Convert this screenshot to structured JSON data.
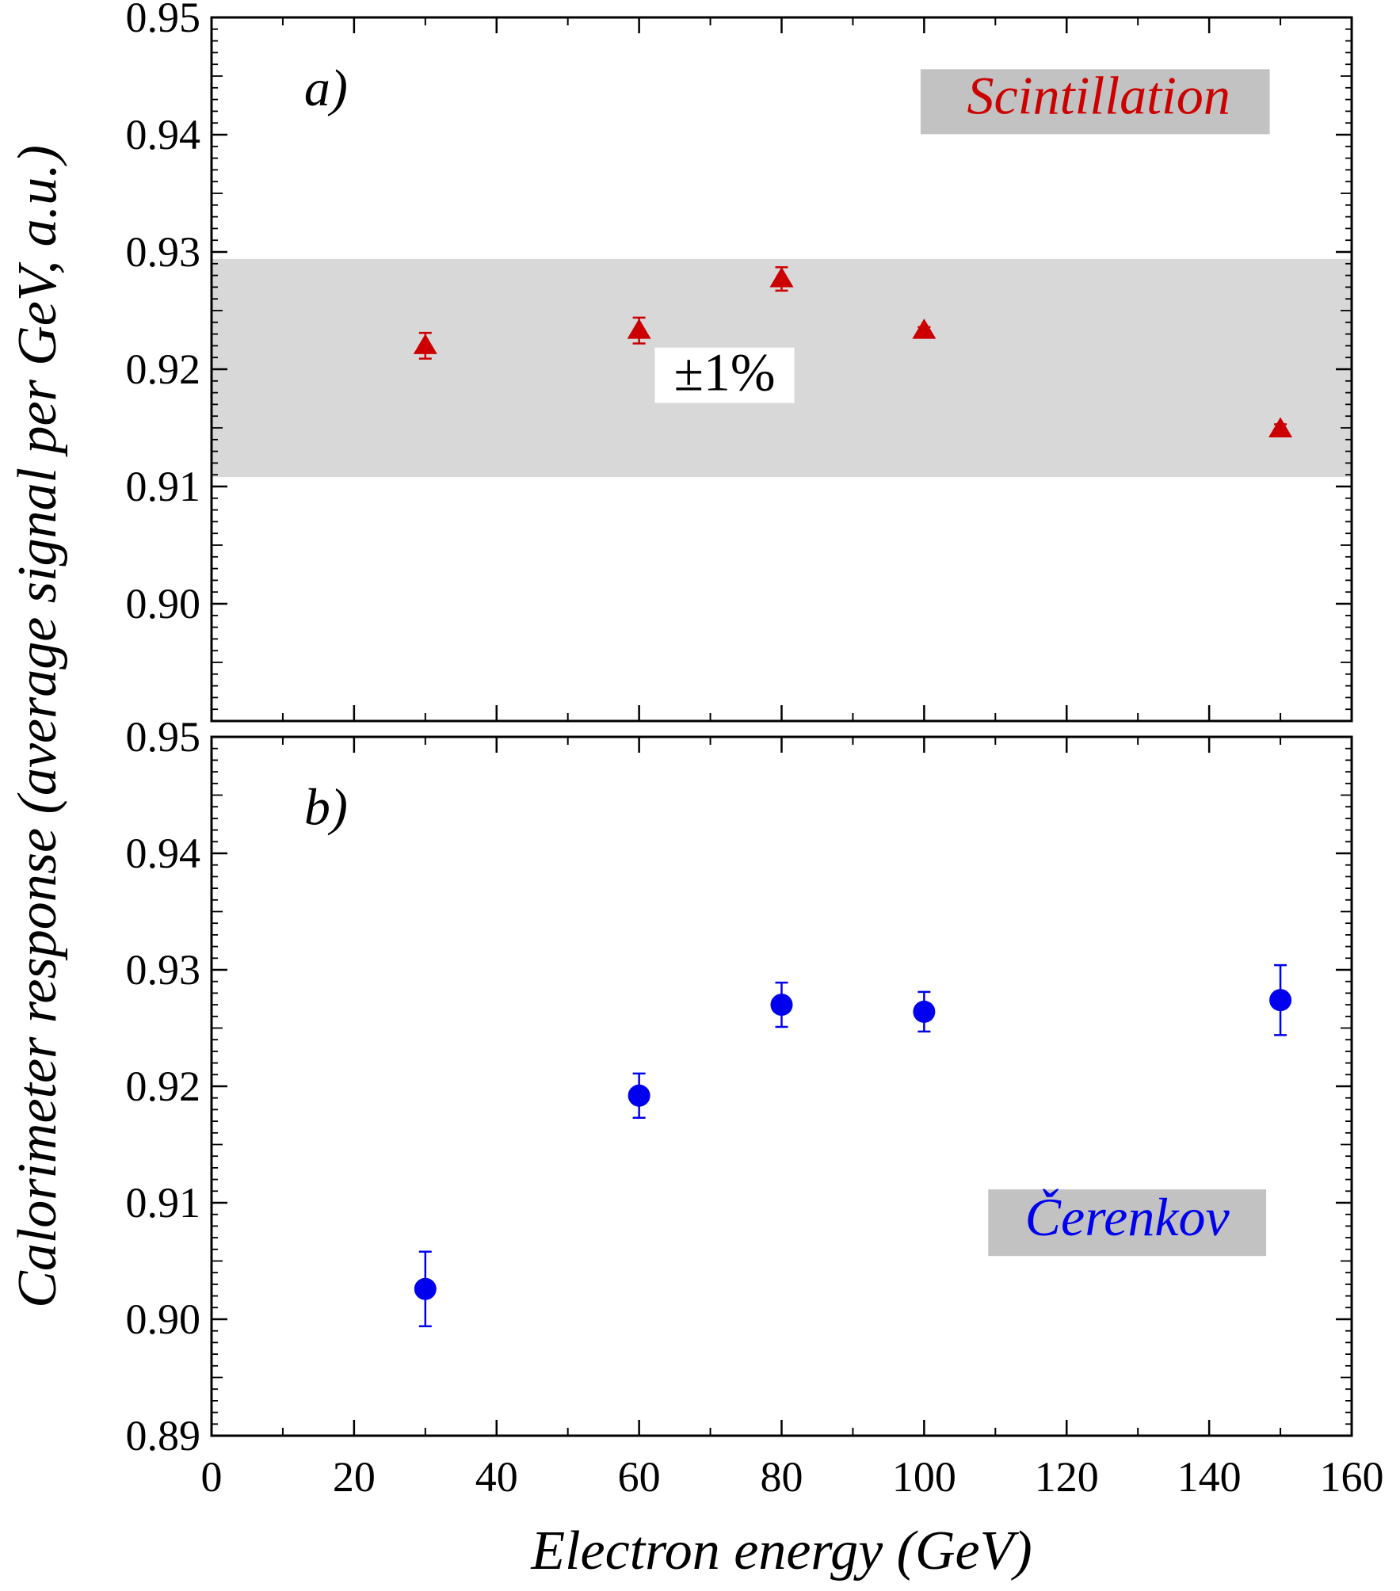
{
  "chart_data": [
    {
      "type": "scatter",
      "panel_label": "a)",
      "series_label": "Scintillation",
      "series_color": "#cc0000",
      "marker": "triangle",
      "band": {
        "y_low": 0.9108,
        "y_high": 0.9294,
        "label": "±1%",
        "color": "#d8d8d8"
      },
      "xlim": [
        0,
        160
      ],
      "ylim": [
        0.89,
        0.95
      ],
      "yticks": [
        "0.95",
        "0.94",
        "0.93",
        "0.92",
        "0.91",
        "0.90"
      ],
      "points": [
        {
          "x": 30,
          "y": 0.922,
          "err": 0.0011
        },
        {
          "x": 60,
          "y": 0.9233,
          "err": 0.0011
        },
        {
          "x": 80,
          "y": 0.9277,
          "err": 0.001
        },
        {
          "x": 100,
          "y": 0.9233,
          "err": 0.0003
        },
        {
          "x": 150,
          "y": 0.9149,
          "err": 0.0004
        }
      ]
    },
    {
      "type": "scatter",
      "panel_label": "b)",
      "series_label": "Čerenkov",
      "series_color": "#0000ee",
      "marker": "circle",
      "xlim": [
        0,
        160
      ],
      "ylim": [
        0.89,
        0.95
      ],
      "yticks": [
        "0.95",
        "0.94",
        "0.93",
        "0.92",
        "0.91",
        "0.90",
        "0.89"
      ],
      "points": [
        {
          "x": 30,
          "y": 0.9026,
          "err": 0.0032
        },
        {
          "x": 60,
          "y": 0.9192,
          "err": 0.0019
        },
        {
          "x": 80,
          "y": 0.927,
          "err": 0.0019
        },
        {
          "x": 100,
          "y": 0.9264,
          "err": 0.0017
        },
        {
          "x": 150,
          "y": 0.9274,
          "err": 0.003
        }
      ]
    }
  ],
  "axes": {
    "xlabel": "Electron energy (GeV)",
    "ylabel": "Calorimeter response (average signal per GeV, a.u.)",
    "xticks": [
      "0",
      "20",
      "40",
      "60",
      "80",
      "100",
      "120",
      "140",
      "160"
    ]
  }
}
